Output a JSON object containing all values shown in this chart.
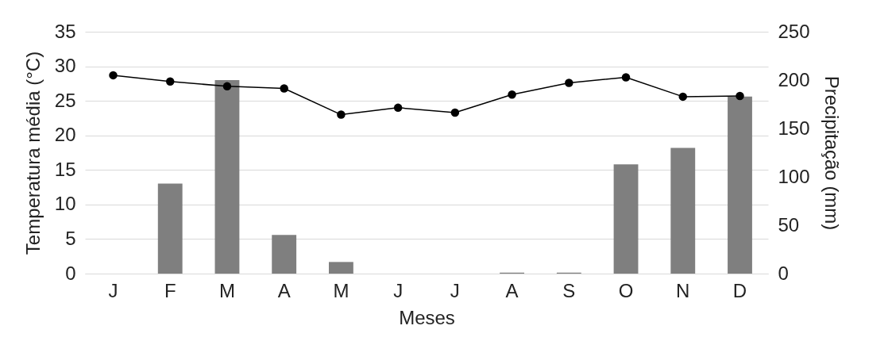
{
  "chart_data": {
    "type": "bar",
    "xlabel": "Meses",
    "ylabel": "Temperatura  média (°C)",
    "y2label": "Precipitação (mm)",
    "categories": [
      "J",
      "F",
      "M",
      "A",
      "M",
      "J",
      "J",
      "A",
      "S",
      "O",
      "N",
      "D"
    ],
    "series": [
      {
        "axis": "y2",
        "color": "#7f7f7f",
        "values": [
          0,
          93,
          200,
          40,
          12,
          0,
          0,
          1,
          1,
          113,
          130,
          183
        ]
      },
      {
        "type": "line",
        "color": "#000000",
        "marker": "circle",
        "values": [
          28.7,
          27.8,
          27.1,
          26.8,
          23.0,
          24.0,
          23.3,
          25.9,
          27.6,
          28.4,
          25.6,
          25.7
        ]
      }
    ],
    "ylim": [
      0,
      35
    ],
    "yticks": [
      0,
      5,
      10,
      15,
      20,
      25,
      30,
      35
    ],
    "y2lim": [
      0,
      250
    ],
    "y2ticks": [
      0,
      50,
      100,
      150,
      200,
      250
    ],
    "grid": "y"
  }
}
